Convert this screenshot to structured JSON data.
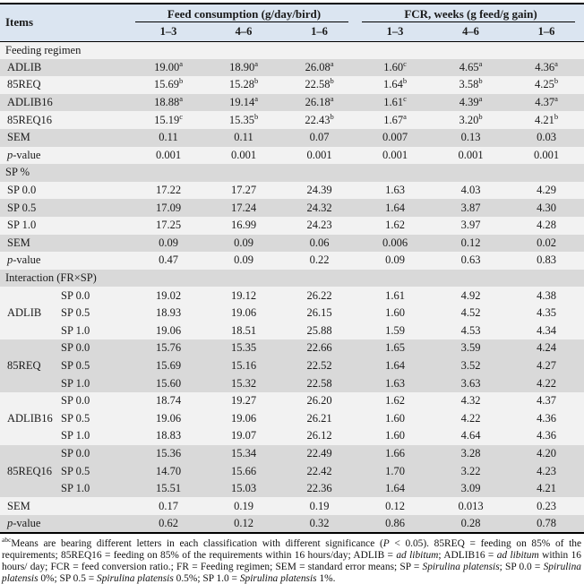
{
  "colors": {
    "header_bg": "#dbe5f1",
    "row_dark": "#d9d9d9",
    "row_light": "#f2f2f2",
    "border": "#000000"
  },
  "header": {
    "items": "Items",
    "group1": "Feed consumption (g/day/bird)",
    "group2": "FCR, weeks (g feed/g gain)",
    "subcols": [
      "1–3",
      "4–6",
      "1–6",
      "1–3",
      "4–6",
      "1–6"
    ]
  },
  "table": {
    "rows": [
      {
        "kind": "section",
        "label": "Feeding regimen",
        "shade": "light"
      },
      {
        "kind": "data",
        "label": "ADLIB",
        "shade": "dark",
        "values": [
          "19.00^a",
          "18.90^a",
          "26.08^a",
          "1.60^c",
          "4.65^a",
          "4.36^a"
        ]
      },
      {
        "kind": "data",
        "label": "85REQ",
        "shade": "light",
        "values": [
          "15.69^b",
          "15.28^b",
          "22.58^b",
          "1.64^b",
          "3.58^b",
          "4.25^b"
        ]
      },
      {
        "kind": "data",
        "label": "ADLIB16",
        "shade": "dark",
        "values": [
          "18.88^a",
          "19.14^a",
          "26.18^a",
          "1.61^c",
          "4.39^a",
          "4.37^a"
        ]
      },
      {
        "kind": "data",
        "label": "85REQ16",
        "shade": "light",
        "values": [
          "15.19^c",
          "15.35^b",
          "22.43^b",
          "1.67^a",
          "3.20^b",
          "4.21^b"
        ]
      },
      {
        "kind": "data",
        "label": "SEM",
        "shade": "dark",
        "values": [
          "0.11",
          "0.11",
          "0.07",
          "0.007",
          "0.13",
          "0.03"
        ]
      },
      {
        "kind": "data",
        "label": "p-value",
        "pitalic": true,
        "shade": "light",
        "values": [
          "0.001",
          "0.001",
          "0.001",
          "0.001",
          "0.001",
          "0.001"
        ]
      },
      {
        "kind": "section",
        "label": "SP %",
        "shade": "dark"
      },
      {
        "kind": "data",
        "label": "SP 0.0",
        "shade": "light",
        "values": [
          "17.22",
          "17.27",
          "24.39",
          "1.63",
          "4.03",
          "4.29"
        ]
      },
      {
        "kind": "data",
        "label": "SP 0.5",
        "shade": "dark",
        "values": [
          "17.09",
          "17.24",
          "24.32",
          "1.64",
          "3.87",
          "4.30"
        ]
      },
      {
        "kind": "data",
        "label": "SP 1.0",
        "shade": "light",
        "values": [
          "17.25",
          "16.99",
          "24.23",
          "1.62",
          "3.97",
          "4.28"
        ]
      },
      {
        "kind": "data",
        "label": "SEM",
        "shade": "dark",
        "values": [
          "0.09",
          "0.09",
          "0.06",
          "0.006",
          "0.12",
          "0.02"
        ]
      },
      {
        "kind": "data",
        "label": "p-value",
        "pitalic": true,
        "shade": "light",
        "values": [
          "0.47",
          "0.09",
          "0.22",
          "0.09",
          "0.63",
          "0.83"
        ]
      },
      {
        "kind": "section",
        "label": "Interaction (FR×SP)",
        "shade": "dark"
      },
      {
        "kind": "data",
        "group": "ADLIB",
        "rowspan": 3,
        "sub": "SP 0.0",
        "shade": "light",
        "values": [
          "19.02",
          "19.12",
          "26.22",
          "1.61",
          "4.92",
          "4.38"
        ]
      },
      {
        "kind": "data",
        "sub": "SP 0.5",
        "shade": "light",
        "values": [
          "18.93",
          "19.06",
          "26.15",
          "1.60",
          "4.52",
          "4.35"
        ]
      },
      {
        "kind": "data",
        "sub": "SP 1.0",
        "shade": "light",
        "values": [
          "19.06",
          "18.51",
          "25.88",
          "1.59",
          "4.53",
          "4.34"
        ]
      },
      {
        "kind": "data",
        "group": "85REQ",
        "rowspan": 3,
        "sub": "SP 0.0",
        "shade": "dark",
        "values": [
          "15.76",
          "15.35",
          "22.66",
          "1.65",
          "3.59",
          "4.24"
        ]
      },
      {
        "kind": "data",
        "sub": "SP 0.5",
        "shade": "dark",
        "values": [
          "15.69",
          "15.16",
          "22.52",
          "1.64",
          "3.52",
          "4.27"
        ]
      },
      {
        "kind": "data",
        "sub": "SP 1.0",
        "shade": "dark",
        "values": [
          "15.60",
          "15.32",
          "22.58",
          "1.63",
          "3.63",
          "4.22"
        ]
      },
      {
        "kind": "data",
        "group": "ADLIB16",
        "rowspan": 3,
        "sub": "SP 0.0",
        "shade": "light",
        "values": [
          "18.74",
          "19.27",
          "26.20",
          "1.62",
          "4.32",
          "4.37"
        ]
      },
      {
        "kind": "data",
        "sub": "SP 0.5",
        "shade": "light",
        "values": [
          "19.06",
          "19.06",
          "26.21",
          "1.60",
          "4.22",
          "4.36"
        ]
      },
      {
        "kind": "data",
        "sub": "SP 1.0",
        "shade": "light",
        "values": [
          "18.83",
          "19.07",
          "26.12",
          "1.60",
          "4.64",
          "4.36"
        ]
      },
      {
        "kind": "data",
        "group": "85REQ16",
        "rowspan": 3,
        "sub": "SP 0.0",
        "shade": "dark",
        "values": [
          "15.36",
          "15.34",
          "22.49",
          "1.66",
          "3.28",
          "4.20"
        ]
      },
      {
        "kind": "data",
        "sub": "SP 0.5",
        "shade": "dark",
        "values": [
          "14.70",
          "15.66",
          "22.42",
          "1.70",
          "3.22",
          "4.23"
        ]
      },
      {
        "kind": "data",
        "sub": "SP 1.0",
        "shade": "dark",
        "values": [
          "15.51",
          "15.03",
          "22.36",
          "1.64",
          "3.09",
          "4.21"
        ]
      },
      {
        "kind": "data",
        "label": "SEM",
        "shade": "light",
        "values": [
          "0.17",
          "0.19",
          "0.19",
          "0.12",
          "0.013",
          "0.23"
        ]
      },
      {
        "kind": "data",
        "label": "p-value",
        "pitalic": true,
        "shade": "dark",
        "values": [
          "0.62",
          "0.12",
          "0.32",
          "0.86",
          "0.28",
          "0.78"
        ]
      }
    ]
  },
  "footnote": {
    "segments": [
      {
        "t": "abc",
        "s": "sup"
      },
      {
        "t": "Means are bearing different letters in each classification with different significance (",
        "s": "n"
      },
      {
        "t": "P",
        "s": "i"
      },
      {
        "t": " < 0.05). 85REQ = feeding on 85% of the requirements; 85REQ16 = feeding on 85% of the requirements within 16 hours/day; ADLIB = ",
        "s": "n"
      },
      {
        "t": "ad libitum",
        "s": "i"
      },
      {
        "t": "; ADLIB16 = ",
        "s": "n"
      },
      {
        "t": "ad libitum",
        "s": "i"
      },
      {
        "t": " within 16 hours/ day; FCR = feed conversion ratio.; FR = Feeding regimen; SEM = standard error means; SP = ",
        "s": "n"
      },
      {
        "t": "Spirulina platensis",
        "s": "i"
      },
      {
        "t": "; SP 0.0 = ",
        "s": "n"
      },
      {
        "t": "Spirulina platensis",
        "s": "i"
      },
      {
        "t": " 0%; SP 0.5 = ",
        "s": "n"
      },
      {
        "t": "Spirulina platensis",
        "s": "i"
      },
      {
        "t": " 0.5%; SP 1.0 = ",
        "s": "n"
      },
      {
        "t": "Spirulina platensis",
        "s": "i"
      },
      {
        "t": " 1%.",
        "s": "n"
      }
    ]
  }
}
